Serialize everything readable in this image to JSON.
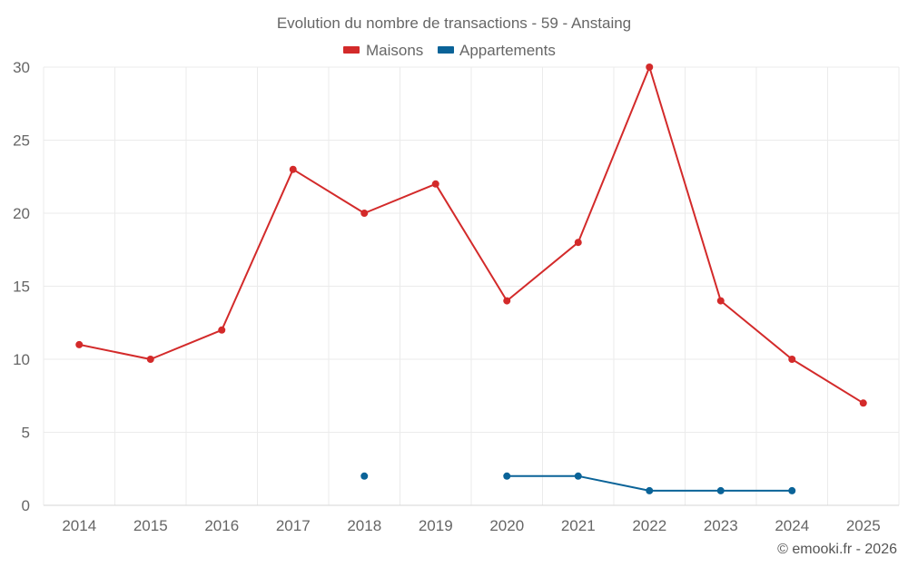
{
  "chart_data": {
    "type": "line",
    "title": "Evolution du nombre de transactions - 59 - Anstaing",
    "xlabel": "",
    "ylabel": "",
    "categories": [
      "2014",
      "2015",
      "2016",
      "2017",
      "2018",
      "2019",
      "2020",
      "2021",
      "2022",
      "2023",
      "2024",
      "2025"
    ],
    "ylim": [
      0,
      30
    ],
    "yticks": [
      0,
      5,
      10,
      15,
      20,
      25,
      30
    ],
    "grid": true,
    "legend_position": "top-center",
    "series": [
      {
        "name": "Maisons",
        "color": "#d32a2a",
        "values": [
          11,
          10,
          12,
          23,
          20,
          22,
          14,
          18,
          30,
          14,
          10,
          7
        ]
      },
      {
        "name": "Appartements",
        "color": "#0a6398",
        "values": [
          null,
          null,
          null,
          null,
          2,
          null,
          2,
          2,
          1,
          1,
          1,
          null
        ]
      }
    ]
  },
  "credit": "© emooki.fr - 2026"
}
